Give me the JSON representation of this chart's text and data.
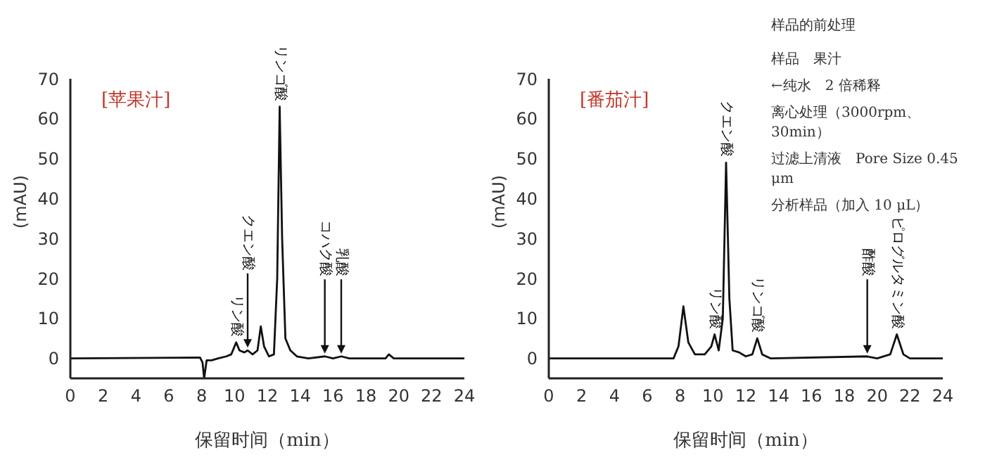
{
  "chart_data": [
    {
      "type": "line",
      "title": "[苹果汁]",
      "xlabel": "保留时间（min）",
      "ylabel": "(mAU)",
      "xlim": [
        0,
        24
      ],
      "xticks": [
        0,
        2,
        4,
        6,
        8,
        10,
        12,
        14,
        16,
        18,
        20,
        22,
        24
      ],
      "ylim": [
        -5,
        70
      ],
      "yticks": [
        0,
        10,
        20,
        30,
        40,
        50,
        60,
        70
      ],
      "grid": false,
      "legend": false,
      "series": [
        {
          "color": "#111111",
          "x": [
            0,
            7.9,
            8.05,
            8.15,
            8.3,
            8.6,
            9,
            9.5,
            9.8,
            10.1,
            10.3,
            10.6,
            10.8,
            11.1,
            11.4,
            11.6,
            11.8,
            12.1,
            12.4,
            12.6,
            12.75,
            12.9,
            13.1,
            13.4,
            13.8,
            14.5,
            15.5,
            16,
            16.5,
            17,
            19.2,
            19.4,
            19.7,
            24
          ],
          "values": [
            0,
            0.2,
            -1,
            -5,
            -0.5,
            -0.5,
            0,
            0.5,
            1,
            4,
            2,
            1.5,
            2,
            1,
            2,
            8,
            3,
            0.5,
            1,
            20,
            63,
            30,
            5,
            2,
            0.5,
            0,
            0.5,
            0,
            0.5,
            0,
            0,
            1,
            0,
            0
          ]
        }
      ],
      "annotations": [
        {
          "text": "リン酸",
          "x": 10.1,
          "y": 4
        },
        {
          "text": "クエン酸",
          "x": 10.8,
          "y": 2
        },
        {
          "text": "リンゴ酸",
          "x": 12.75,
          "y": 63
        },
        {
          "text": "コハク酸",
          "x": 15.5,
          "y": 0.5
        },
        {
          "text": "乳酸",
          "x": 16.5,
          "y": 0.5
        }
      ]
    },
    {
      "type": "line",
      "title": "[番茄汁]",
      "xlabel": "保留时间（min）",
      "ylabel": "(mAU)",
      "xlim": [
        0,
        24
      ],
      "xticks": [
        0,
        2,
        4,
        6,
        8,
        10,
        12,
        14,
        16,
        18,
        20,
        22,
        24
      ],
      "ylim": [
        -5,
        70
      ],
      "yticks": [
        0,
        10,
        20,
        30,
        40,
        50,
        60,
        70
      ],
      "grid": false,
      "legend": false,
      "series": [
        {
          "color": "#111111",
          "x": [
            0,
            7.6,
            7.9,
            8.2,
            8.5,
            8.9,
            9.5,
            9.9,
            10.1,
            10.35,
            10.6,
            10.8,
            11,
            11.2,
            11.6,
            12,
            12.4,
            12.7,
            13,
            13.5,
            19.4,
            20,
            20.8,
            21.2,
            21.6,
            22,
            24
          ],
          "values": [
            0,
            0,
            3,
            13,
            4,
            1,
            1,
            3,
            6,
            2,
            10,
            49,
            15,
            2,
            1.5,
            0.5,
            1,
            5,
            1,
            0,
            0.5,
            0,
            1,
            6,
            1,
            0,
            0
          ]
        }
      ],
      "annotations": [
        {
          "text": "リン酸",
          "x": 10.1,
          "y": 6
        },
        {
          "text": "クエン酸",
          "x": 10.8,
          "y": 49
        },
        {
          "text": "リンゴ酸",
          "x": 12.7,
          "y": 5
        },
        {
          "text": "酢酸",
          "x": 19.4,
          "y": 0.5
        },
        {
          "text": "ピログルタミン酸",
          "x": 21.2,
          "y": 6
        },
        "样品的前处理",
        "样品　果汁",
        "←纯水　2 倍稀释",
        "离心处理（3000rpm、30min）",
        "过滤上清液　Pore Size 0.45 μm",
        "分析样品（加入 10 μL）"
      ]
    }
  ]
}
